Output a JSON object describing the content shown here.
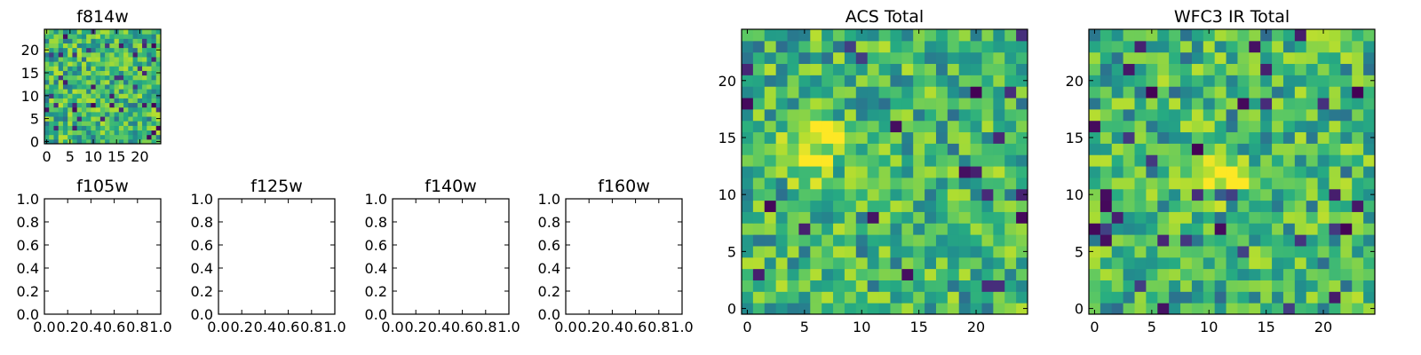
{
  "figure_title": "",
  "chart_data": [
    {
      "type": "heatmap",
      "title": "f814w",
      "grid_size": [
        25,
        25
      ],
      "xlim": [
        -0.5,
        24.5
      ],
      "ylim": [
        -0.5,
        24.5
      ],
      "xticks": [
        0,
        5,
        10,
        15,
        20
      ],
      "yticks": [
        0,
        5,
        10,
        15,
        20
      ],
      "colormap": "viridis",
      "values_note": "random noise, approx. range 0–1",
      "values_seed": 814
    },
    {
      "type": "empty",
      "title": "f105w",
      "xlim": [
        0,
        1
      ],
      "ylim": [
        0,
        1
      ],
      "xticks": [
        "0.0",
        "0.2",
        "0.4",
        "0.6",
        "0.8",
        "1.0"
      ],
      "yticks": [
        "0.0",
        "0.2",
        "0.4",
        "0.6",
        "0.8",
        "1.0"
      ]
    },
    {
      "type": "empty",
      "title": "f125w",
      "xlim": [
        0,
        1
      ],
      "ylim": [
        0,
        1
      ],
      "xticks": [
        "0.0",
        "0.2",
        "0.4",
        "0.6",
        "0.8",
        "1.0"
      ],
      "yticks": [
        "0.0",
        "0.2",
        "0.4",
        "0.6",
        "0.8",
        "1.0"
      ]
    },
    {
      "type": "empty",
      "title": "f140w",
      "xlim": [
        0,
        1
      ],
      "ylim": [
        0,
        1
      ],
      "xticks": [
        "0.0",
        "0.2",
        "0.4",
        "0.6",
        "0.8",
        "1.0"
      ],
      "yticks": [
        "0.0",
        "0.2",
        "0.4",
        "0.6",
        "0.8",
        "1.0"
      ]
    },
    {
      "type": "empty",
      "title": "f160w",
      "xlim": [
        0,
        1
      ],
      "ylim": [
        0,
        1
      ],
      "xticks": [
        "0.0",
        "0.2",
        "0.4",
        "0.6",
        "0.8",
        "1.0"
      ],
      "yticks": [
        "0.0",
        "0.2",
        "0.4",
        "0.6",
        "0.8",
        "1.0"
      ]
    },
    {
      "type": "heatmap",
      "title": "ACS Total",
      "grid_size": [
        25,
        25
      ],
      "xlim": [
        -0.5,
        24.5
      ],
      "ylim": [
        -0.5,
        24.5
      ],
      "xticks": [
        0,
        5,
        10,
        15,
        20
      ],
      "yticks": [
        0,
        5,
        10,
        15,
        20
      ],
      "colormap": "viridis",
      "values_note": "random noise, approx. range 0–1, brighter blob near (5–7, 13–15)",
      "values_seed": 2001
    },
    {
      "type": "heatmap",
      "title": "WFC3 IR Total",
      "grid_size": [
        25,
        25
      ],
      "xlim": [
        -0.5,
        24.5
      ],
      "ylim": [
        -0.5,
        24.5
      ],
      "xticks": [
        0,
        5,
        10,
        15,
        20
      ],
      "yticks": [
        0,
        5,
        10,
        15,
        20
      ],
      "colormap": "viridis",
      "values_note": "random noise, approx. range 0–1, brighter blob near (11–12, 11–12)",
      "values_seed": 3001
    }
  ],
  "colors": {
    "background": "#ffffff",
    "axes": "#000000"
  }
}
